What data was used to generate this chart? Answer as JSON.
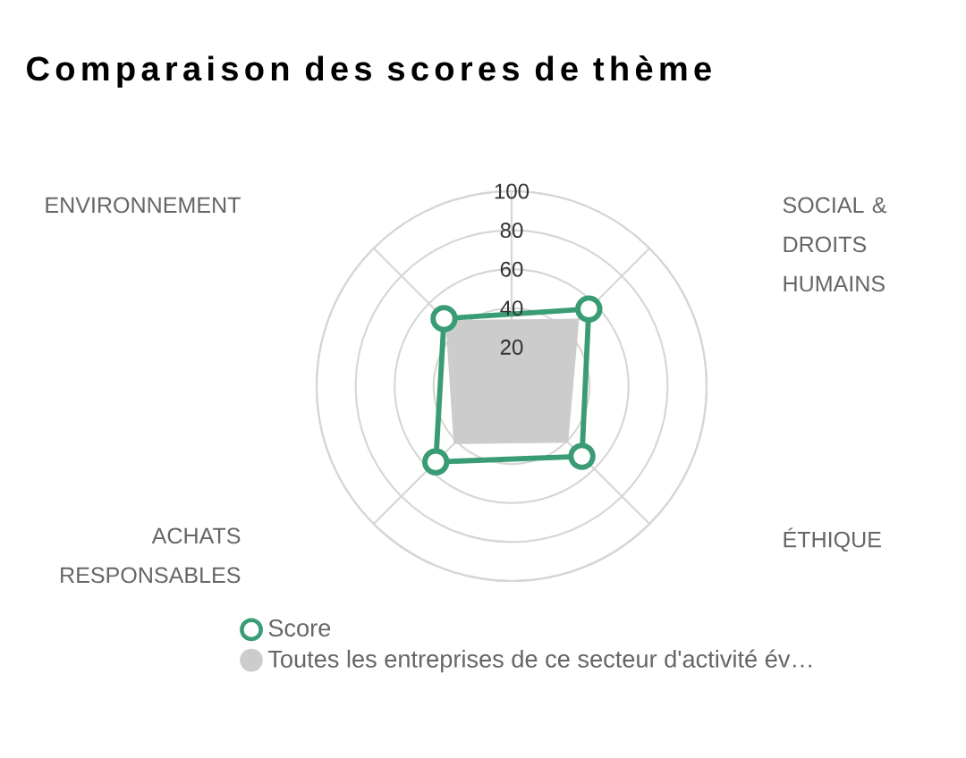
{
  "chart_data": {
    "type": "radar",
    "title": "Comparaison des scores de thème",
    "categories": [
      "SOCIAL & DROITS HUMAINS",
      "ÉTHIQUE",
      "ACHATS RESPONSABLES",
      "ENVIRONNEMENT"
    ],
    "series": [
      {
        "name": "Score",
        "color": "#3a9c74",
        "values": [
          56,
          51,
          55,
          49
        ],
        "marker": "circle"
      },
      {
        "name": "Toutes les entreprises de ce secteur d'activité év…",
        "color": "#cccccc",
        "type": "area",
        "values": [
          49,
          41,
          42,
          48
        ]
      }
    ],
    "ylim": [
      0,
      100
    ],
    "yticks": [
      20,
      40,
      60,
      80,
      100
    ],
    "grid": true,
    "legend": "bottom"
  }
}
